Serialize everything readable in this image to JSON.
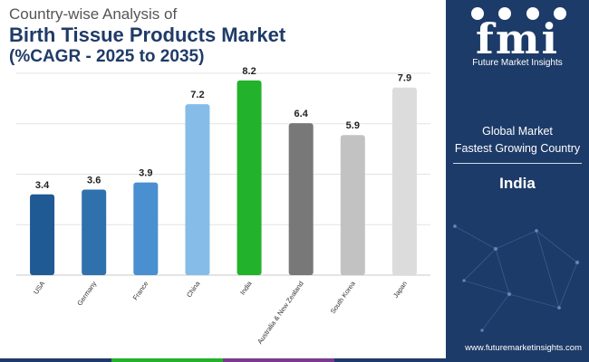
{
  "header": {
    "line1": "Country-wise Analysis of",
    "line2": "Birth Tissue Products Market",
    "line3": "(%CAGR - 2025 to 2035)"
  },
  "sidebar": {
    "brand_name": "Future Market Insights",
    "brand_mark": "fmi",
    "label_line1": "Global Market",
    "label_line2": "Fastest Growing Country",
    "country": "India",
    "website": "www.futuremarketinsights.com"
  },
  "colors": {
    "brand_navy": "#1d3b68",
    "bar_colors": [
      "#1f5a94",
      "#2f71ad",
      "#4a8fd0",
      "#86bde8",
      "#22b22b",
      "#787878",
      "#c2c2c2",
      "#dcdcdc"
    ],
    "bottom_bar": [
      "#1d3b68",
      "#22b22b",
      "#7a3b8c",
      "#1d3b68"
    ]
  },
  "chart_data": {
    "type": "bar",
    "title": "Birth Tissue Products Market",
    "xlabel": "",
    "ylabel": "%CAGR",
    "ylim": [
      0,
      8.5
    ],
    "grid": true,
    "categories": [
      "USA",
      "Germany",
      "France",
      "China",
      "India",
      "Australia & New Zealand",
      "South Korea",
      "Japan"
    ],
    "values": [
      3.4,
      3.6,
      3.9,
      7.2,
      8.2,
      6.4,
      5.9,
      7.9
    ],
    "labels": [
      "3.4",
      "3.6",
      "3.9",
      "7.2",
      "8.2",
      "6.4",
      "5.9",
      "7.9"
    ]
  }
}
